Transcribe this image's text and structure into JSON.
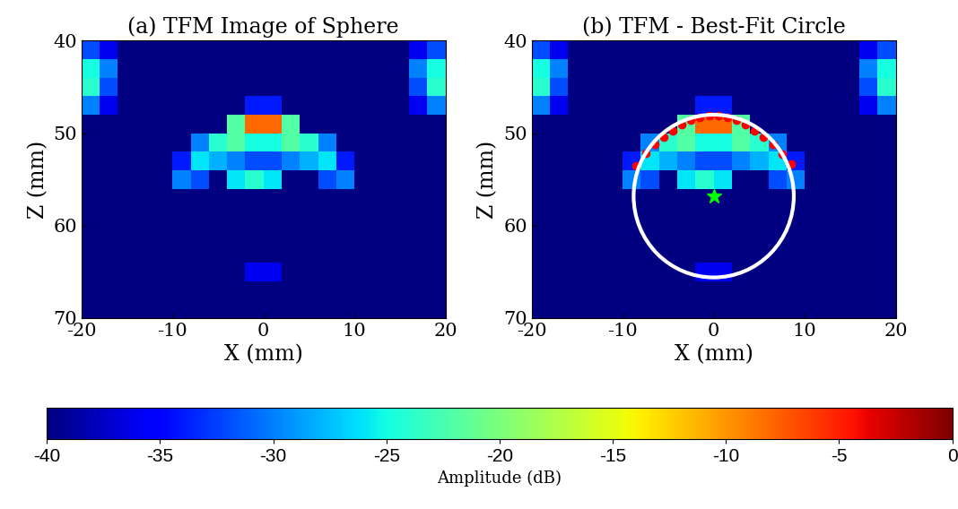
{
  "chart_data": [
    {
      "type": "heatmap",
      "title": "(a) TFM Image of Sphere",
      "x_label": "X (mm)",
      "y_label": "Z (mm)",
      "xlim": [
        -20,
        20
      ],
      "ylim": [
        70,
        40
      ],
      "xticks": [
        -20,
        -10,
        0,
        10,
        20
      ],
      "yticks": [
        40,
        50,
        60,
        70
      ],
      "x": [
        -19,
        -17,
        -15,
        -13,
        -11,
        -9,
        -7,
        -5,
        -3,
        -1,
        1,
        3,
        5,
        7,
        9,
        11,
        13,
        15,
        17,
        19
      ],
      "y": [
        41,
        43,
        45,
        47,
        49,
        51,
        53,
        55,
        57,
        59,
        61,
        63,
        65,
        67,
        69
      ],
      "cells": [
        [
          -32,
          -36,
          -40,
          -40,
          -40,
          -40,
          -40,
          -40,
          -40,
          -40,
          -40,
          -40,
          -40,
          -40,
          -40,
          -40,
          -40,
          -40,
          -36,
          -32
        ],
        [
          -25,
          -30,
          -40,
          -40,
          -40,
          -40,
          -40,
          -40,
          -40,
          -40,
          -40,
          -40,
          -40,
          -40,
          -40,
          -40,
          -40,
          -40,
          -30,
          -25
        ],
        [
          -24,
          -32,
          -40,
          -40,
          -40,
          -40,
          -40,
          -40,
          -40,
          -40,
          -40,
          -40,
          -40,
          -40,
          -40,
          -40,
          -40,
          -40,
          -32,
          -24
        ],
        [
          -30,
          -36,
          -40,
          -40,
          -40,
          -40,
          -40,
          -40,
          -40,
          -34,
          -34,
          -40,
          -40,
          -40,
          -40,
          -40,
          -40,
          -40,
          -36,
          -30
        ],
        [
          -40,
          -40,
          -40,
          -40,
          -40,
          -40,
          -40,
          -40,
          -22,
          -8,
          -8,
          -22,
          -40,
          -40,
          -40,
          -40,
          -40,
          -40,
          -40,
          -40
        ],
        [
          -40,
          -40,
          -40,
          -40,
          -40,
          -40,
          -30,
          -24,
          -22,
          -25,
          -25,
          -22,
          -24,
          -30,
          -40,
          -40,
          -40,
          -40,
          -40,
          -40
        ],
        [
          -40,
          -40,
          -40,
          -40,
          -40,
          -34,
          -26,
          -28,
          -30,
          -32,
          -32,
          -30,
          -28,
          -26,
          -34,
          -40,
          -40,
          -40,
          -40,
          -40
        ],
        [
          -40,
          -40,
          -40,
          -40,
          -40,
          -30,
          -32,
          -40,
          -26,
          -24,
          -26,
          -40,
          -40,
          -32,
          -30,
          -40,
          -40,
          -40,
          -40,
          -40
        ],
        [
          -40,
          -40,
          -40,
          -40,
          -40,
          -40,
          -40,
          -40,
          -40,
          -40,
          -40,
          -40,
          -40,
          -40,
          -40,
          -40,
          -40,
          -40,
          -40,
          -40
        ],
        [
          -40,
          -40,
          -40,
          -40,
          -40,
          -40,
          -40,
          -40,
          -40,
          -40,
          -40,
          -40,
          -40,
          -40,
          -40,
          -40,
          -40,
          -40,
          -40,
          -40
        ],
        [
          -40,
          -40,
          -40,
          -40,
          -40,
          -40,
          -40,
          -40,
          -40,
          -40,
          -40,
          -40,
          -40,
          -40,
          -40,
          -40,
          -40,
          -40,
          -40,
          -40
        ],
        [
          -40,
          -40,
          -40,
          -40,
          -40,
          -40,
          -40,
          -40,
          -40,
          -40,
          -40,
          -40,
          -40,
          -40,
          -40,
          -40,
          -40,
          -40,
          -40,
          -40
        ],
        [
          -40,
          -40,
          -40,
          -40,
          -40,
          -40,
          -40,
          -40,
          -40,
          -36,
          -36,
          -40,
          -40,
          -40,
          -40,
          -40,
          -40,
          -40,
          -40,
          -40
        ],
        [
          -40,
          -40,
          -40,
          -40,
          -40,
          -40,
          -40,
          -40,
          -40,
          -40,
          -40,
          -40,
          -40,
          -40,
          -40,
          -40,
          -40,
          -40,
          -40,
          -40
        ],
        [
          -40,
          -40,
          -40,
          -40,
          -40,
          -40,
          -40,
          -40,
          -40,
          -40,
          -40,
          -40,
          -40,
          -40,
          -40,
          -40,
          -40,
          -40,
          -40,
          -40
        ]
      ]
    },
    {
      "type": "heatmap",
      "title": "(b) TFM - Best-Fit Circle",
      "x_label": "X (mm)",
      "y_label": "Z (mm)",
      "xlim": [
        -20,
        20
      ],
      "ylim": [
        70,
        40
      ],
      "xticks": [
        -20,
        -10,
        0,
        10,
        20
      ],
      "yticks": [
        40,
        50,
        60,
        70
      ],
      "x": [
        -19,
        -17,
        -15,
        -13,
        -11,
        -9,
        -7,
        -5,
        -3,
        -1,
        1,
        3,
        5,
        7,
        9,
        11,
        13,
        15,
        17,
        19
      ],
      "y": [
        41,
        43,
        45,
        47,
        49,
        51,
        53,
        55,
        57,
        59,
        61,
        63,
        65,
        67,
        69
      ],
      "cells": [
        [
          -32,
          -36,
          -40,
          -40,
          -40,
          -40,
          -40,
          -40,
          -40,
          -40,
          -40,
          -40,
          -40,
          -40,
          -40,
          -40,
          -40,
          -40,
          -36,
          -32
        ],
        [
          -25,
          -30,
          -40,
          -40,
          -40,
          -40,
          -40,
          -40,
          -40,
          -40,
          -40,
          -40,
          -40,
          -40,
          -40,
          -40,
          -40,
          -40,
          -30,
          -25
        ],
        [
          -24,
          -32,
          -40,
          -40,
          -40,
          -40,
          -40,
          -40,
          -40,
          -40,
          -40,
          -40,
          -40,
          -40,
          -40,
          -40,
          -40,
          -40,
          -32,
          -24
        ],
        [
          -30,
          -36,
          -40,
          -40,
          -40,
          -40,
          -40,
          -40,
          -40,
          -34,
          -34,
          -40,
          -40,
          -40,
          -40,
          -40,
          -40,
          -40,
          -36,
          -30
        ],
        [
          -40,
          -40,
          -40,
          -40,
          -40,
          -40,
          -40,
          -40,
          -22,
          -8,
          -8,
          -22,
          -40,
          -40,
          -40,
          -40,
          -40,
          -40,
          -40,
          -40
        ],
        [
          -40,
          -40,
          -40,
          -40,
          -40,
          -40,
          -30,
          -24,
          -22,
          -25,
          -25,
          -22,
          -24,
          -30,
          -40,
          -40,
          -40,
          -40,
          -40,
          -40
        ],
        [
          -40,
          -40,
          -40,
          -40,
          -40,
          -34,
          -26,
          -28,
          -30,
          -32,
          -32,
          -30,
          -28,
          -26,
          -34,
          -40,
          -40,
          -40,
          -40,
          -40
        ],
        [
          -40,
          -40,
          -40,
          -40,
          -40,
          -30,
          -32,
          -40,
          -26,
          -24,
          -26,
          -40,
          -40,
          -32,
          -30,
          -40,
          -40,
          -40,
          -40,
          -40
        ],
        [
          -40,
          -40,
          -40,
          -40,
          -40,
          -40,
          -40,
          -40,
          -40,
          -40,
          -40,
          -40,
          -40,
          -40,
          -40,
          -40,
          -40,
          -40,
          -40,
          -40
        ],
        [
          -40,
          -40,
          -40,
          -40,
          -40,
          -40,
          -40,
          -40,
          -40,
          -40,
          -40,
          -40,
          -40,
          -40,
          -40,
          -40,
          -40,
          -40,
          -40,
          -40
        ],
        [
          -40,
          -40,
          -40,
          -40,
          -40,
          -40,
          -40,
          -40,
          -40,
          -40,
          -40,
          -40,
          -40,
          -40,
          -40,
          -40,
          -40,
          -40,
          -40,
          -40
        ],
        [
          -40,
          -40,
          -40,
          -40,
          -40,
          -40,
          -40,
          -40,
          -40,
          -40,
          -40,
          -40,
          -40,
          -40,
          -40,
          -40,
          -40,
          -40,
          -40,
          -40
        ],
        [
          -40,
          -40,
          -40,
          -40,
          -40,
          -40,
          -40,
          -40,
          -40,
          -36,
          -36,
          -40,
          -40,
          -40,
          -40,
          -40,
          -40,
          -40,
          -40,
          -40
        ],
        [
          -40,
          -40,
          -40,
          -40,
          -40,
          -40,
          -40,
          -40,
          -40,
          -40,
          -40,
          -40,
          -40,
          -40,
          -40,
          -40,
          -40,
          -40,
          -40,
          -40
        ],
        [
          -40,
          -40,
          -40,
          -40,
          -40,
          -40,
          -40,
          -40,
          -40,
          -40,
          -40,
          -40,
          -40,
          -40,
          -40,
          -40,
          -40,
          -40,
          -40,
          -40
        ]
      ],
      "fit_points": {
        "color": "#ff0000",
        "marker": "o",
        "x": [
          -8.5,
          -7.5,
          -6.5,
          -5.5,
          -4.5,
          -3.5,
          -2.5,
          -1.5,
          -0.5,
          0.5,
          1.5,
          2.5,
          3.5,
          4.5,
          5.5,
          6.5,
          7.5,
          8.5
        ],
        "y": [
          53.5,
          52.2,
          51.2,
          50.4,
          49.7,
          49.1,
          48.6,
          48.3,
          48.1,
          48.1,
          48.3,
          48.6,
          49.1,
          49.7,
          50.4,
          51.2,
          52.3,
          53.3
        ]
      },
      "fit_circle": {
        "center_x": 0,
        "center_y": 56.8,
        "radius": 8.8,
        "color": "#ffffff"
      },
      "center_marker": {
        "x": 0,
        "y": 56.8,
        "color": "#00ff00",
        "marker": "*"
      }
    }
  ],
  "colorbar": {
    "label": "Amplitude (dB)",
    "range": [
      -40,
      0
    ],
    "ticks": [
      -40,
      -35,
      -30,
      -25,
      -20,
      -15,
      -10,
      -5,
      0
    ]
  }
}
